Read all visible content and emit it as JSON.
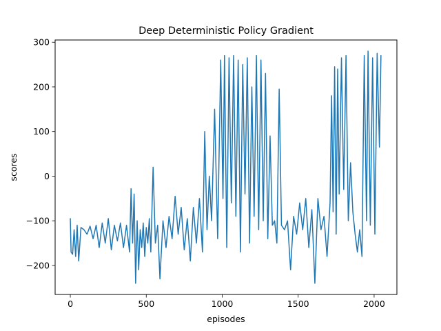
{
  "chart_data": {
    "type": "line",
    "title": "Deep Deterministic Policy Gradient",
    "xlabel": "episodes",
    "ylabel": "scores",
    "xlim": [
      -100,
      2150
    ],
    "ylim": [
      -265,
      305
    ],
    "xticks": [
      0,
      500,
      1000,
      1500,
      2000
    ],
    "yticks": [
      -200,
      -100,
      0,
      100,
      200,
      300
    ],
    "grid": false,
    "legend": "none",
    "series": [
      {
        "color": "#1f77b4",
        "keypoints": [
          [
            0,
            -95
          ],
          [
            5,
            -170
          ],
          [
            15,
            -175
          ],
          [
            25,
            -120
          ],
          [
            35,
            -180
          ],
          [
            45,
            -110
          ],
          [
            55,
            -190
          ],
          [
            70,
            -115
          ],
          [
            90,
            -120
          ],
          [
            110,
            -130
          ],
          [
            130,
            -112
          ],
          [
            150,
            -140
          ],
          [
            170,
            -110
          ],
          [
            190,
            -160
          ],
          [
            210,
            -105
          ],
          [
            230,
            -150
          ],
          [
            250,
            -95
          ],
          [
            270,
            -165
          ],
          [
            290,
            -110
          ],
          [
            310,
            -145
          ],
          [
            330,
            -105
          ],
          [
            350,
            -160
          ],
          [
            370,
            -110
          ],
          [
            390,
            -170
          ],
          [
            400,
            -28
          ],
          [
            410,
            -150
          ],
          [
            420,
            -40
          ],
          [
            430,
            -240
          ],
          [
            440,
            -100
          ],
          [
            450,
            -210
          ],
          [
            460,
            -120
          ],
          [
            470,
            -160
          ],
          [
            480,
            -105
          ],
          [
            490,
            -180
          ],
          [
            500,
            -115
          ],
          [
            510,
            -150
          ],
          [
            520,
            -95
          ],
          [
            530,
            -170
          ],
          [
            545,
            20
          ],
          [
            560,
            -150
          ],
          [
            575,
            -110
          ],
          [
            590,
            -230
          ],
          [
            610,
            -100
          ],
          [
            630,
            -160
          ],
          [
            650,
            -90
          ],
          [
            670,
            -140
          ],
          [
            690,
            -45
          ],
          [
            710,
            -130
          ],
          [
            730,
            -70
          ],
          [
            750,
            -165
          ],
          [
            770,
            -95
          ],
          [
            790,
            -190
          ],
          [
            810,
            -70
          ],
          [
            830,
            -150
          ],
          [
            850,
            -50
          ],
          [
            870,
            -170
          ],
          [
            885,
            100
          ],
          [
            900,
            -120
          ],
          [
            915,
            0
          ],
          [
            930,
            -100
          ],
          [
            950,
            150
          ],
          [
            970,
            -140
          ],
          [
            990,
            260
          ],
          [
            1005,
            -50
          ],
          [
            1015,
            270
          ],
          [
            1030,
            -160
          ],
          [
            1045,
            265
          ],
          [
            1060,
            -60
          ],
          [
            1075,
            270
          ],
          [
            1090,
            -90
          ],
          [
            1105,
            260
          ],
          [
            1120,
            -170
          ],
          [
            1135,
            250
          ],
          [
            1150,
            -40
          ],
          [
            1165,
            265
          ],
          [
            1180,
            -150
          ],
          [
            1195,
            200
          ],
          [
            1210,
            -90
          ],
          [
            1225,
            270
          ],
          [
            1240,
            -120
          ],
          [
            1255,
            260
          ],
          [
            1270,
            -100
          ],
          [
            1285,
            230
          ],
          [
            1300,
            -140
          ],
          [
            1315,
            90
          ],
          [
            1330,
            -110
          ],
          [
            1345,
            -100
          ],
          [
            1360,
            -150
          ],
          [
            1375,
            195
          ],
          [
            1390,
            -110
          ],
          [
            1410,
            -120
          ],
          [
            1430,
            -100
          ],
          [
            1450,
            -210
          ],
          [
            1470,
            -90
          ],
          [
            1490,
            -130
          ],
          [
            1510,
            -60
          ],
          [
            1530,
            -120
          ],
          [
            1550,
            -50
          ],
          [
            1570,
            -160
          ],
          [
            1590,
            -75
          ],
          [
            1610,
            -240
          ],
          [
            1630,
            -50
          ],
          [
            1650,
            -120
          ],
          [
            1670,
            -90
          ],
          [
            1690,
            -180
          ],
          [
            1710,
            -60
          ],
          [
            1720,
            180
          ],
          [
            1730,
            -80
          ],
          [
            1740,
            245
          ],
          [
            1750,
            -130
          ],
          [
            1760,
            240
          ],
          [
            1770,
            -40
          ],
          [
            1785,
            265
          ],
          [
            1800,
            -30
          ],
          [
            1815,
            270
          ],
          [
            1830,
            -100
          ],
          [
            1845,
            30
          ],
          [
            1860,
            -80
          ],
          [
            1875,
            -130
          ],
          [
            1890,
            -170
          ],
          [
            1905,
            -120
          ],
          [
            1920,
            -180
          ],
          [
            1935,
            270
          ],
          [
            1950,
            -100
          ],
          [
            1960,
            280
          ],
          [
            1975,
            -110
          ],
          [
            1990,
            265
          ],
          [
            2005,
            -130
          ],
          [
            2020,
            275
          ],
          [
            2035,
            65
          ],
          [
            2045,
            270
          ]
        ]
      }
    ]
  }
}
